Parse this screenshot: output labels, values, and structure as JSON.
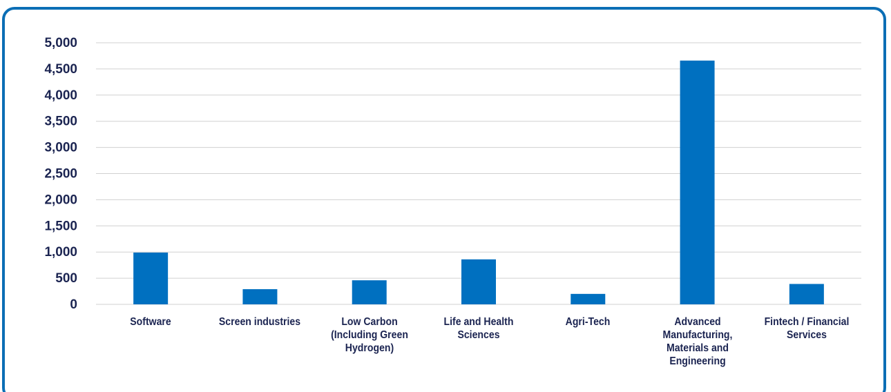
{
  "chart_data": {
    "type": "bar",
    "categories": [
      "Software",
      "Screen industries",
      "Low Carbon (Including Green Hydrogen)",
      "Life and Health Sciences",
      "Agri-Tech",
      "Advanced Manufacturing, Materials and Engineering",
      "Fintech / Financial Services"
    ],
    "values": [
      990,
      290,
      460,
      860,
      200,
      4660,
      390
    ],
    "color": "#0070c0",
    "ylim": [
      0,
      5000
    ],
    "yticks": [
      0,
      500,
      {
        "value": 1000,
        "label": "1,000"
      },
      {
        "value": 1500,
        "label": "1,500"
      },
      {
        "value": 2000,
        "label": "2,000"
      },
      {
        "value": 2500,
        "label": "2,500"
      },
      {
        "value": 3000,
        "label": "3,000"
      },
      {
        "value": 3500,
        "label": "3,500"
      },
      {
        "value": 4000,
        "label": "4,000"
      },
      {
        "value": 4500,
        "label": "4,500"
      },
      {
        "value": 5000,
        "label": "5,000"
      }
    ],
    "grid": true
  }
}
